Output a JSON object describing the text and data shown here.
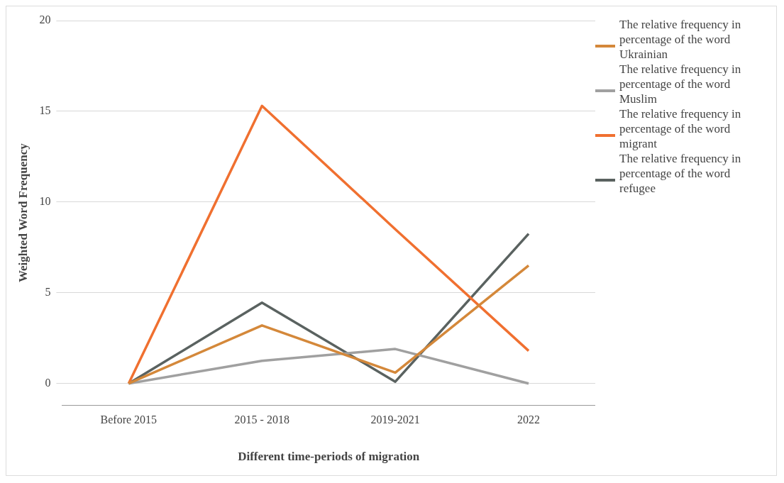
{
  "chart_data": {
    "type": "line",
    "xlabel": "Different time-periods of migration",
    "ylabel": "Weighted Word Frequency",
    "categories": [
      "Before 2015",
      "2015 - 2018",
      "2019-2021",
      "2022"
    ],
    "series": [
      {
        "name": "The relative frequency in percentage of the word Ukrainian",
        "color": "#d4883a",
        "values": [
          0,
          3.2,
          0.6,
          6.5
        ]
      },
      {
        "name": "The relative frequency in percentage of the word Muslim",
        "color": "#a0a0a0",
        "values": [
          0,
          1.25,
          1.9,
          0
        ]
      },
      {
        "name": "The relative frequency in percentage of the word migrant",
        "color": "#f07030",
        "values": [
          0,
          15.3,
          8.5,
          1.8
        ]
      },
      {
        "name": "The relative frequency in percentage of the word refugee",
        "color": "#5a6260",
        "values": [
          0,
          4.45,
          0.1,
          8.25
        ]
      }
    ],
    "ylim": [
      -1.2,
      20
    ],
    "yticks": [
      0,
      5,
      10,
      15,
      20
    ],
    "grid": "y",
    "legend": "top right",
    "marker": "none",
    "line_style": "solid"
  }
}
